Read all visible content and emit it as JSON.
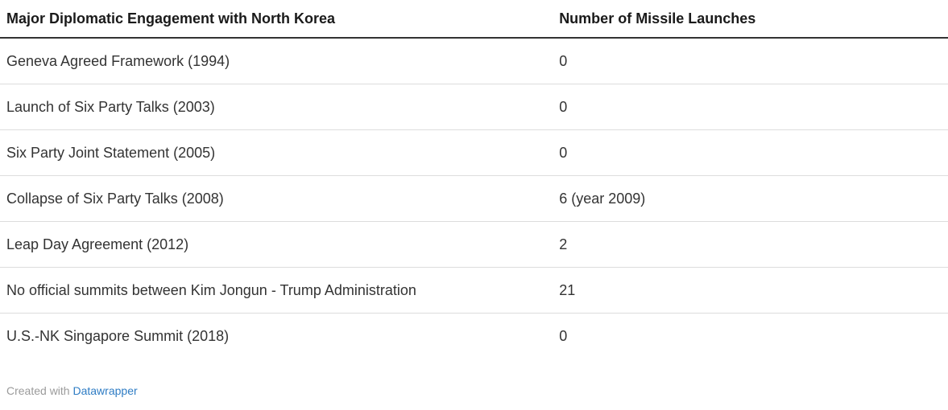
{
  "chart_data": {
    "type": "table",
    "columns": [
      "Major Diplomatic Engagement with North Korea",
      "Number of Missile Launches"
    ],
    "rows": [
      [
        "Geneva Agreed Framework (1994)",
        "0"
      ],
      [
        "Launch of Six Party Talks (2003)",
        "0"
      ],
      [
        "Six Party Joint Statement (2005)",
        "0"
      ],
      [
        "Collapse of Six Party Talks (2008)",
        "6 (year 2009)"
      ],
      [
        "Leap Day Agreement (2012)",
        "2"
      ],
      [
        "No official summits between Kim Jongun - Trump Administration",
        "21"
      ],
      [
        "U.S.-NK Singapore Summit (2018)",
        "0"
      ]
    ]
  },
  "footer": {
    "text": "Created with",
    "link_label": "Datawrapper"
  },
  "colors": {
    "header_text": "#1a1a1a",
    "body_text": "#333333",
    "header_border": "#333333",
    "row_border": "#dddddd",
    "footer_text": "#9b9b9b",
    "link": "#2e7cc4",
    "background": "#ffffff"
  }
}
